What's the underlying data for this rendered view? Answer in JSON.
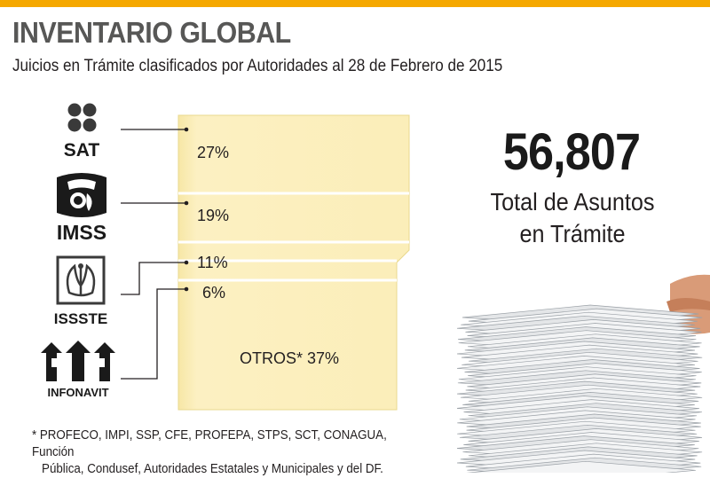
{
  "header": {
    "title": "INVENTARIO GLOBAL",
    "subtitle": "Juicios en Trámite clasificados por Autoridades al 28 de Febrero de 2015"
  },
  "colors": {
    "accent": "#f5a800",
    "folder": "#fbefbb",
    "title_gray": "#575756"
  },
  "chart_data": {
    "type": "bar",
    "orientation": "stacked-vertical",
    "categories": [
      "SAT",
      "IMSS",
      "ISSSTE",
      "INFONAVIT",
      "OTROS*"
    ],
    "values": [
      27,
      19,
      11,
      6,
      37
    ],
    "labels": [
      "27%",
      "19%",
      "11%",
      "6%",
      "OTROS* 37%"
    ],
    "unit": "%"
  },
  "logos": {
    "sat": "SAT",
    "imss": "IMSS",
    "issste": "ISSSTE",
    "infonavit": "INFONAVIT"
  },
  "total": {
    "value": "56,807",
    "label_line1": "Total de Asuntos",
    "label_line2": "en Trámite"
  },
  "footnote": {
    "line1": "* PROFECO, IMPI, SSP, CFE, PROFEPA, STPS, SCT, CONAGUA, Función",
    "line2": "Pública, Condusef, Autoridades Estatales y Municipales y del DF."
  }
}
